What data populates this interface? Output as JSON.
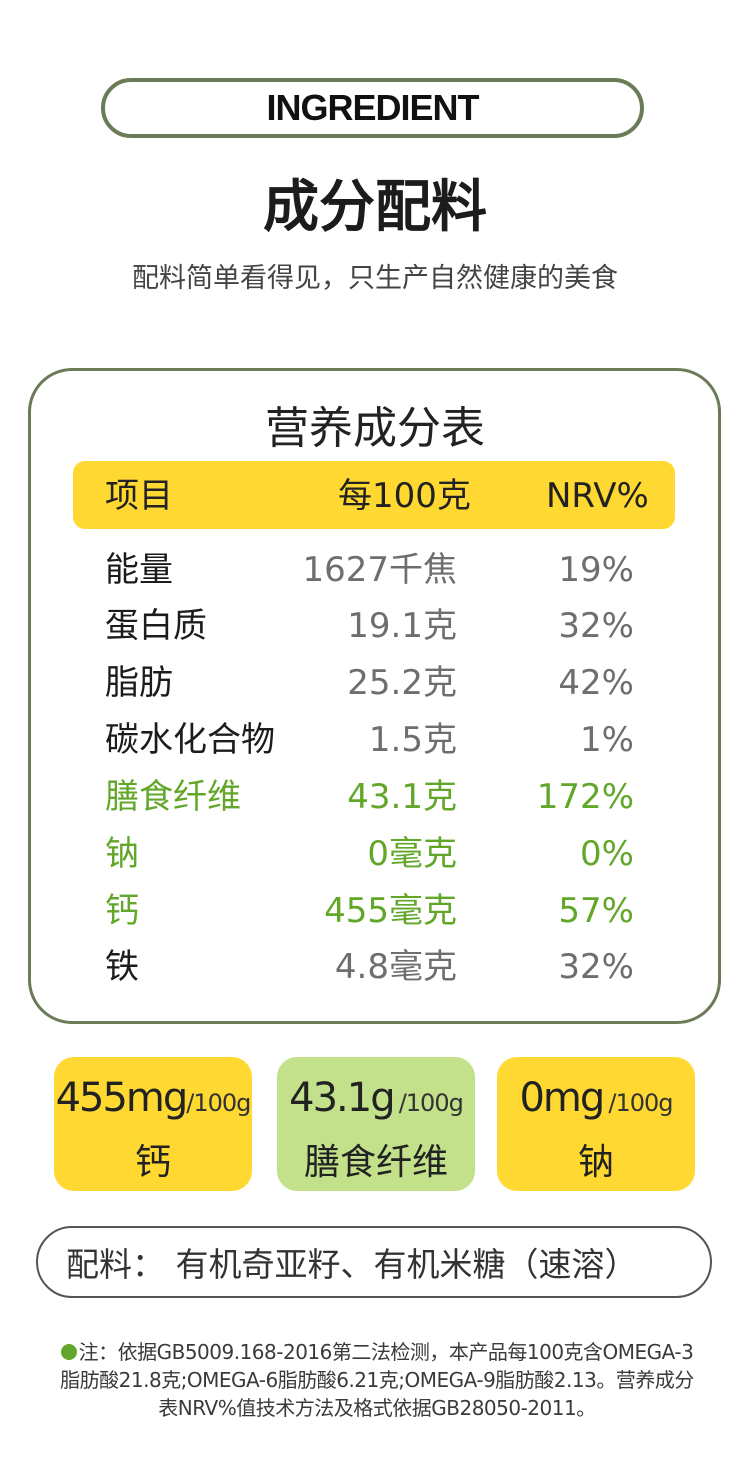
{
  "header": {
    "badge_text": "INGREDIENT",
    "title": "成分配料",
    "subtitle": "配料简单看得见，只生产自然健康的美食"
  },
  "nutrition": {
    "title": "营养成分表",
    "columns": [
      "项目",
      "每100克",
      "NRV%"
    ],
    "rows": [
      {
        "name": "能量",
        "amount": "1627千焦",
        "nrv": "19%",
        "highlight": false
      },
      {
        "name": "蛋白质",
        "amount": "19.1克",
        "nrv": "32%",
        "highlight": false
      },
      {
        "name": "脂肪",
        "amount": "25.2克",
        "nrv": "42%",
        "highlight": false
      },
      {
        "name": "碳水化合物",
        "amount": "1.5克",
        "nrv": "1%",
        "highlight": false
      },
      {
        "name": "膳食纤维",
        "amount": "43.1克",
        "nrv": "172%",
        "highlight": true
      },
      {
        "name": "钠",
        "amount": "0毫克",
        "nrv": "0%",
        "highlight": true
      },
      {
        "name": "钙",
        "amount": "455毫克",
        "nrv": "57%",
        "highlight": true
      },
      {
        "name": "铁",
        "amount": "4.8毫克",
        "nrv": "32%",
        "highlight": false
      }
    ]
  },
  "highlights": [
    {
      "value": "455mg",
      "unit": "/100g",
      "label": "钙",
      "color": "#ffd932"
    },
    {
      "value": "43.1g",
      "unit": "/100g",
      "label": "膳食纤维",
      "color": "#c3e08a"
    },
    {
      "value": "0mg",
      "unit": "/100g",
      "label": "钠",
      "color": "#ffd932"
    }
  ],
  "ingredients": {
    "text": "配料： 有机奇亚籽、有机米糖（速溶）"
  },
  "note": {
    "line1": "注：依据GB5009.168-2016第二法检测，本产品每100克含OMEGA-3",
    "line2": "脂肪酸21.8克;OMEGA-6脂肪酸6.21克;OMEGA-9脂肪酸2.13。营养成分",
    "line3": "表NRV%值技术方法及格式依据GB28050-2011。"
  },
  "colors": {
    "accent_green": "#62a72a",
    "yellow": "#ffd932",
    "light_green": "#c3e08a",
    "border_olive": "#6b7b58"
  }
}
